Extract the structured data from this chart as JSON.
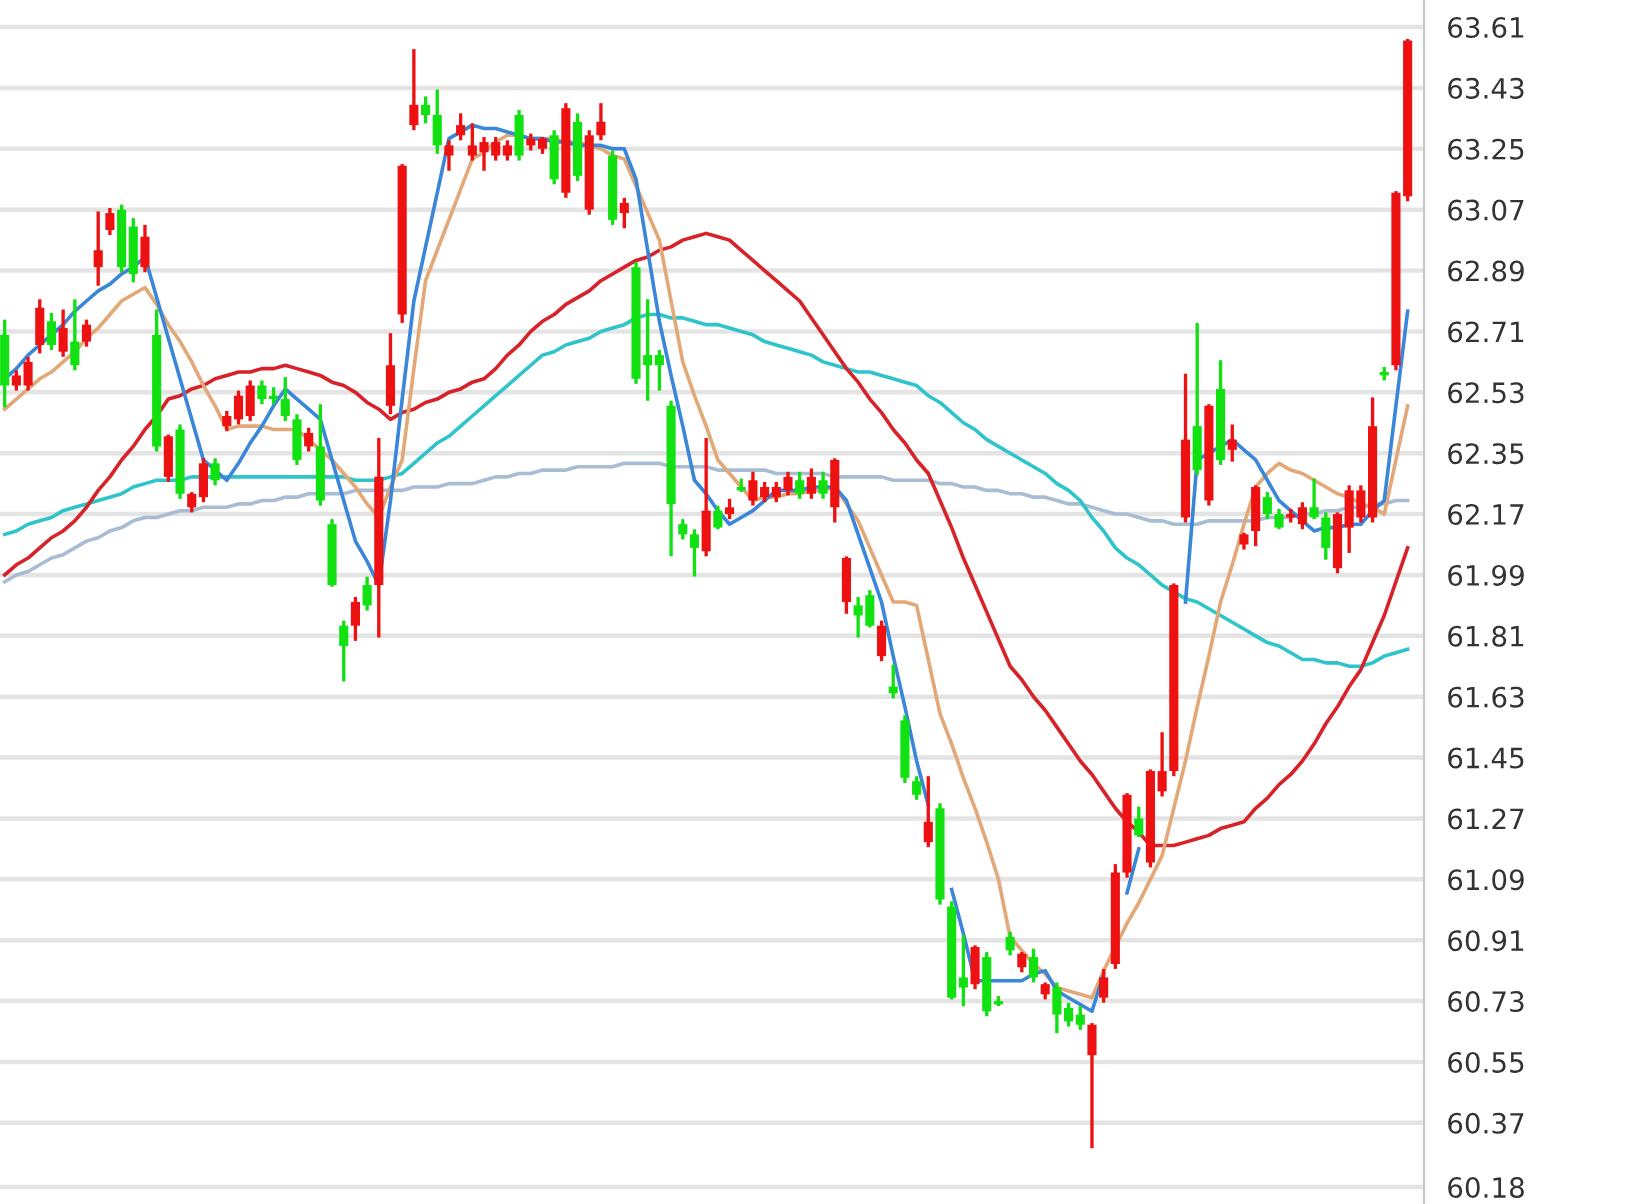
{
  "chart_data": {
    "type": "candlestick",
    "categories": [
      null,
      null,
      null,
      null,
      null,
      null,
      null,
      null,
      null,
      null,
      null,
      null,
      null,
      null,
      null,
      null,
      null,
      null,
      null,
      null,
      null,
      null,
      null,
      null,
      null,
      null,
      null,
      null,
      null,
      null,
      null,
      null,
      null,
      null,
      null,
      null,
      null,
      null,
      null,
      null,
      null,
      null,
      null,
      null,
      null,
      null,
      null,
      null,
      null,
      null,
      null,
      null,
      null,
      null,
      null,
      null,
      null,
      null,
      null,
      null,
      null,
      null,
      null,
      null,
      null,
      null,
      null,
      null,
      null,
      null,
      null,
      null,
      null,
      null,
      null,
      null,
      null,
      null,
      null,
      null,
      null,
      null,
      null,
      null,
      null,
      null,
      null,
      null,
      null,
      null,
      null,
      null,
      null,
      null,
      null,
      null,
      null,
      null,
      null,
      null,
      null,
      null,
      null,
      null,
      null,
      null,
      null,
      null,
      null,
      null,
      null,
      null,
      null,
      null,
      null,
      null,
      null,
      null,
      null,
      null,
      null
    ],
    "ohlc": [
      [
        62.7,
        62.74,
        62.49,
        62.55
      ],
      [
        62.55,
        62.59,
        62.54,
        62.58
      ],
      [
        62.55,
        62.63,
        62.54,
        62.62
      ],
      [
        62.67,
        62.8,
        62.65,
        62.78
      ],
      [
        62.74,
        62.76,
        62.66,
        62.67
      ],
      [
        62.65,
        62.77,
        62.64,
        62.72
      ],
      [
        62.68,
        62.8,
        62.6,
        62.61
      ],
      [
        62.68,
        62.74,
        62.67,
        62.73
      ],
      [
        62.9,
        63.06,
        62.85,
        62.95
      ],
      [
        63.01,
        63.07,
        63.0,
        63.06
      ],
      [
        63.07,
        63.08,
        62.89,
        62.9
      ],
      [
        63.02,
        63.04,
        62.86,
        62.88
      ],
      [
        62.9,
        63.02,
        62.89,
        62.99
      ],
      [
        62.7,
        62.77,
        62.36,
        62.37
      ],
      [
        62.28,
        62.4,
        62.27,
        62.4
      ],
      [
        62.42,
        62.43,
        62.22,
        62.23
      ],
      [
        62.19,
        62.23,
        62.18,
        62.23
      ],
      [
        62.22,
        62.33,
        62.21,
        62.32
      ],
      [
        62.32,
        62.33,
        62.26,
        62.27
      ],
      [
        62.43,
        62.47,
        62.42,
        62.46
      ],
      [
        62.45,
        62.53,
        62.44,
        62.52
      ],
      [
        62.46,
        62.56,
        62.45,
        62.55
      ],
      [
        62.55,
        62.56,
        62.5,
        62.51
      ],
      [
        62.52,
        62.54,
        62.5,
        62.51
      ],
      [
        62.51,
        62.57,
        62.45,
        62.46
      ],
      [
        62.45,
        62.46,
        62.32,
        62.33
      ],
      [
        62.37,
        62.42,
        62.36,
        62.41
      ],
      [
        62.37,
        62.49,
        62.2,
        62.21
      ],
      [
        62.14,
        62.15,
        61.96,
        61.96
      ],
      [
        61.84,
        61.85,
        61.68,
        61.78
      ],
      [
        61.84,
        61.92,
        61.8,
        61.91
      ],
      [
        61.96,
        61.98,
        61.89,
        61.9
      ],
      [
        61.96,
        62.39,
        61.81,
        62.28
      ],
      [
        62.49,
        62.7,
        62.47,
        62.61
      ],
      [
        62.76,
        63.2,
        62.74,
        63.2
      ],
      [
        63.32,
        63.54,
        63.31,
        63.38
      ],
      [
        63.38,
        63.4,
        63.33,
        63.35
      ],
      [
        63.35,
        63.42,
        63.24,
        63.26
      ],
      [
        63.23,
        63.27,
        63.19,
        63.26
      ],
      [
        63.29,
        63.35,
        63.28,
        63.32
      ],
      [
        63.23,
        63.32,
        63.22,
        63.26
      ],
      [
        63.24,
        63.28,
        63.19,
        63.27
      ],
      [
        63.23,
        63.28,
        63.22,
        63.27
      ],
      [
        63.23,
        63.27,
        63.22,
        63.26
      ],
      [
        63.35,
        63.36,
        63.22,
        63.23
      ],
      [
        63.26,
        63.29,
        63.25,
        63.28
      ],
      [
        63.25,
        63.28,
        63.24,
        63.28
      ],
      [
        63.29,
        63.3,
        63.15,
        63.16
      ],
      [
        63.12,
        63.38,
        63.11,
        63.37
      ],
      [
        63.33,
        63.35,
        63.16,
        63.17
      ],
      [
        63.07,
        63.3,
        63.06,
        63.29
      ],
      [
        63.29,
        63.38,
        63.28,
        63.33
      ],
      [
        63.23,
        63.24,
        63.03,
        63.04
      ],
      [
        63.06,
        63.1,
        63.02,
        63.09
      ],
      [
        62.9,
        62.91,
        62.56,
        62.57
      ],
      [
        62.64,
        62.8,
        62.51,
        62.61
      ],
      [
        62.64,
        62.65,
        62.54,
        62.61
      ],
      [
        62.49,
        62.5,
        62.05,
        62.2
      ],
      [
        62.14,
        62.15,
        62.1,
        62.11
      ],
      [
        62.11,
        62.12,
        61.99,
        62.07
      ],
      [
        62.06,
        62.39,
        62.05,
        62.18
      ],
      [
        62.18,
        62.19,
        62.13,
        62.13
      ],
      [
        62.17,
        62.21,
        62.16,
        62.19
      ],
      [
        62.25,
        62.27,
        62.24,
        62.24
      ],
      [
        62.21,
        62.29,
        62.2,
        62.27
      ],
      [
        62.22,
        62.26,
        62.21,
        62.25
      ],
      [
        62.22,
        62.26,
        62.21,
        62.25
      ],
      [
        62.24,
        62.29,
        62.23,
        62.28
      ],
      [
        62.27,
        62.29,
        62.22,
        62.23
      ],
      [
        62.23,
        62.3,
        62.22,
        62.28
      ],
      [
        62.27,
        62.29,
        62.22,
        62.23
      ],
      [
        62.19,
        62.33,
        62.15,
        62.33
      ],
      [
        61.91,
        62.04,
        61.88,
        62.04
      ],
      [
        61.9,
        61.92,
        61.81,
        61.87
      ],
      [
        61.93,
        61.94,
        61.84,
        61.84
      ],
      [
        61.75,
        61.85,
        61.74,
        61.84
      ],
      [
        61.66,
        61.72,
        61.63,
        61.64
      ],
      [
        61.56,
        61.57,
        61.38,
        61.39
      ],
      [
        61.38,
        61.39,
        61.33,
        61.34
      ],
      [
        61.2,
        61.39,
        61.19,
        61.26
      ],
      [
        61.3,
        61.31,
        61.02,
        61.03
      ],
      [
        61.01,
        61.02,
        60.74,
        60.74
      ],
      [
        60.8,
        60.92,
        60.72,
        60.77
      ],
      [
        60.78,
        60.89,
        60.77,
        60.89
      ],
      [
        60.86,
        60.87,
        60.69,
        60.7
      ],
      [
        60.73,
        60.74,
        60.72,
        60.72
      ],
      [
        60.92,
        60.93,
        60.87,
        60.88
      ],
      [
        60.83,
        60.87,
        60.82,
        60.87
      ],
      [
        60.86,
        60.88,
        60.79,
        60.8
      ],
      [
        60.75,
        60.78,
        60.74,
        60.78
      ],
      [
        60.77,
        60.78,
        60.64,
        60.69
      ],
      [
        60.71,
        60.72,
        60.66,
        60.67
      ],
      [
        60.69,
        60.71,
        60.65,
        60.66
      ],
      [
        60.57,
        60.66,
        60.3,
        60.66
      ],
      [
        60.74,
        60.82,
        60.73,
        60.8
      ],
      [
        60.84,
        61.13,
        60.83,
        61.11
      ],
      [
        61.11,
        61.34,
        61.1,
        61.34
      ],
      [
        61.27,
        61.3,
        61.22,
        61.22
      ],
      [
        61.14,
        61.41,
        61.13,
        61.41
      ],
      [
        61.35,
        61.52,
        61.34,
        61.41
      ],
      [
        61.41,
        61.96,
        61.4,
        61.96
      ],
      [
        62.16,
        62.58,
        62.15,
        62.39
      ],
      [
        62.43,
        62.73,
        62.29,
        62.3
      ],
      [
        62.21,
        62.49,
        62.2,
        62.49
      ],
      [
        62.54,
        62.62,
        62.32,
        62.33
      ],
      [
        62.36,
        62.43,
        62.33,
        62.39
      ],
      [
        62.08,
        62.11,
        62.07,
        62.11
      ],
      [
        62.12,
        62.25,
        62.08,
        62.25
      ],
      [
        62.22,
        62.23,
        62.16,
        62.17
      ],
      [
        62.17,
        62.18,
        62.13,
        62.13
      ],
      [
        62.16,
        62.18,
        62.15,
        62.17
      ],
      [
        62.14,
        62.2,
        62.13,
        62.19
      ],
      [
        62.19,
        62.27,
        62.16,
        62.16
      ],
      [
        62.16,
        62.17,
        62.04,
        62.07
      ],
      [
        62.01,
        62.17,
        62.0,
        62.17
      ],
      [
        62.13,
        62.25,
        62.06,
        62.24
      ],
      [
        62.16,
        62.25,
        62.15,
        62.24
      ],
      [
        62.16,
        62.51,
        62.15,
        62.43
      ],
      [
        62.59,
        62.6,
        62.57,
        62.58
      ],
      [
        62.61,
        63.12,
        62.6,
        63.12
      ],
      [
        63.11,
        63.57,
        63.1,
        63.57
      ]
    ],
    "colors": [
      "#11e011",
      "#ee1111",
      "#ee1111",
      "#ee1111",
      "#11e011",
      "#ee1111",
      "#11e011",
      "#ee1111",
      "#ee1111",
      "#ee1111",
      "#11e011",
      "#11e011",
      "#ee1111",
      "#11e011",
      "#ee1111",
      "#11e011",
      "#ee1111",
      "#ee1111",
      "#11e011",
      "#ee1111",
      "#ee1111",
      "#ee1111",
      "#11e011",
      "#11e011",
      "#11e011",
      "#11e011",
      "#ee1111",
      "#11e011",
      "#11e011",
      "#11e011",
      "#ee1111",
      "#11e011",
      "#ee1111",
      "#ee1111",
      "#ee1111",
      "#ee1111",
      "#11e011",
      "#11e011",
      "#ee1111",
      "#ee1111",
      "#ee1111",
      "#ee1111",
      "#ee1111",
      "#ee1111",
      "#11e011",
      "#ee1111",
      "#ee1111",
      "#11e011",
      "#ee1111",
      "#11e011",
      "#ee1111",
      "#ee1111",
      "#11e011",
      "#ee1111",
      "#11e011",
      "#11e011",
      "#11e011",
      "#11e011",
      "#11e011",
      "#11e011",
      "#ee1111",
      "#11e011",
      "#ee1111",
      "#11e011",
      "#ee1111",
      "#ee1111",
      "#ee1111",
      "#ee1111",
      "#11e011",
      "#ee1111",
      "#11e011",
      "#ee1111",
      "#ee1111",
      "#11e011",
      "#11e011",
      "#ee1111",
      "#11e011",
      "#11e011",
      "#11e011",
      "#ee1111",
      "#11e011",
      "#11e011",
      "#11e011",
      "#ee1111",
      "#11e011",
      "#11e011",
      "#11e011",
      "#ee1111",
      "#11e011",
      "#ee1111",
      "#11e011",
      "#11e011",
      "#11e011",
      "#ee1111",
      "#ee1111",
      "#ee1111",
      "#ee1111",
      "#11e011",
      "#ee1111",
      "#ee1111",
      "#ee1111",
      "#ee1111",
      "#11e011",
      "#ee1111",
      "#11e011",
      "#ee1111",
      "#ee1111",
      "#ee1111",
      "#11e011",
      "#11e011",
      "#ee1111",
      "#ee1111",
      "#11e011",
      "#11e011",
      "#ee1111",
      "#ee1111",
      "#ee1111",
      "#ee1111",
      "#11e011",
      "#ee1111",
      "#ee1111"
    ],
    "series": [
      {
        "type": "line",
        "color": "#a8bcd4",
        "values": [
          61.97,
          61.99,
          62.0,
          62.02,
          62.04,
          62.05,
          62.07,
          62.09,
          62.1,
          62.12,
          62.13,
          62.15,
          62.16,
          62.16,
          62.17,
          62.18,
          62.18,
          62.19,
          62.19,
          62.19,
          62.2,
          62.2,
          62.21,
          62.21,
          62.22,
          62.22,
          62.23,
          62.23,
          62.23,
          62.23,
          62.24,
          62.24,
          62.24,
          62.24,
          62.24,
          62.25,
          62.25,
          62.25,
          62.26,
          62.26,
          62.26,
          62.27,
          62.28,
          62.28,
          62.29,
          62.29,
          62.3,
          62.3,
          62.3,
          62.31,
          62.31,
          62.31,
          62.31,
          62.32,
          62.32,
          62.32,
          62.32,
          62.31,
          62.31,
          62.31,
          62.31,
          62.3,
          62.3,
          62.3,
          62.3,
          62.3,
          62.29,
          62.29,
          62.29,
          62.29,
          62.29,
          62.28,
          62.28,
          62.28,
          62.28,
          62.28,
          62.27,
          62.27,
          62.27,
          62.27,
          62.26,
          62.26,
          62.25,
          62.25,
          62.24,
          62.24,
          62.23,
          62.23,
          62.22,
          62.22,
          62.21,
          62.2,
          62.2,
          62.19,
          62.18,
          62.17,
          62.17,
          62.16,
          62.15,
          62.15,
          62.14,
          62.14,
          62.14,
          62.15,
          62.15,
          62.15,
          62.15,
          62.15,
          62.16,
          62.16,
          62.16,
          62.17,
          62.17,
          62.18,
          62.18,
          62.19,
          62.19,
          62.2,
          62.2,
          62.21,
          62.21
        ]
      },
      {
        "type": "line",
        "color": "#2fc4cc",
        "values": [
          62.11,
          62.12,
          62.14,
          62.15,
          62.16,
          62.18,
          62.19,
          62.2,
          62.21,
          62.22,
          62.23,
          62.25,
          62.26,
          62.27,
          62.27,
          62.27,
          62.28,
          62.28,
          62.28,
          62.28,
          62.28,
          62.28,
          62.28,
          62.28,
          62.28,
          62.28,
          62.28,
          62.28,
          62.28,
          62.28,
          62.27,
          62.27,
          62.27,
          62.28,
          62.29,
          62.32,
          62.35,
          62.38,
          62.4,
          62.43,
          62.46,
          62.49,
          62.52,
          62.55,
          62.58,
          62.61,
          62.64,
          62.65,
          62.67,
          62.68,
          62.69,
          62.71,
          62.72,
          62.73,
          62.75,
          62.76,
          62.76,
          62.75,
          62.75,
          62.74,
          62.73,
          62.73,
          62.72,
          62.71,
          62.7,
          62.68,
          62.67,
          62.66,
          62.65,
          62.64,
          62.62,
          62.61,
          62.6,
          62.59,
          62.59,
          62.58,
          62.57,
          62.56,
          62.55,
          62.52,
          62.5,
          62.47,
          62.44,
          62.42,
          62.39,
          62.37,
          62.35,
          62.33,
          62.31,
          62.29,
          62.26,
          62.24,
          62.21,
          62.16,
          62.12,
          62.07,
          62.04,
          62.02,
          61.99,
          61.96,
          61.94,
          61.92,
          61.91,
          61.89,
          61.87,
          61.85,
          61.83,
          61.81,
          61.79,
          61.78,
          61.76,
          61.74,
          61.74,
          61.73,
          61.73,
          61.72,
          61.72,
          61.73,
          61.75,
          61.76,
          61.77
        ]
      },
      {
        "type": "line",
        "color": "#d62228",
        "values": [
          61.99,
          62.02,
          62.04,
          62.07,
          62.1,
          62.12,
          62.15,
          62.19,
          62.24,
          62.28,
          62.33,
          62.37,
          62.42,
          62.46,
          62.51,
          62.52,
          62.54,
          62.55,
          62.57,
          62.58,
          62.59,
          62.59,
          62.6,
          62.6,
          62.61,
          62.6,
          62.59,
          62.58,
          62.56,
          62.55,
          62.53,
          62.5,
          62.48,
          62.45,
          62.47,
          62.48,
          62.5,
          62.51,
          62.53,
          62.54,
          62.56,
          62.57,
          62.6,
          62.64,
          62.67,
          62.71,
          62.74,
          62.76,
          62.79,
          62.81,
          62.83,
          62.86,
          62.88,
          62.9,
          62.92,
          62.93,
          62.95,
          62.96,
          62.98,
          62.99,
          63.0,
          62.99,
          62.98,
          62.95,
          62.92,
          62.89,
          62.86,
          62.83,
          62.8,
          62.75,
          62.7,
          62.65,
          62.6,
          62.56,
          62.51,
          62.47,
          62.42,
          62.38,
          62.33,
          62.29,
          62.21,
          62.13,
          62.04,
          61.96,
          61.88,
          61.8,
          61.72,
          61.68,
          61.63,
          61.59,
          61.54,
          61.49,
          61.44,
          61.4,
          61.35,
          61.3,
          61.26,
          61.23,
          61.19,
          61.19,
          61.19,
          61.2,
          61.21,
          61.22,
          61.24,
          61.25,
          61.26,
          61.3,
          61.33,
          61.37,
          61.4,
          61.44,
          61.49,
          61.55,
          61.6,
          61.66,
          61.71,
          61.79,
          61.87,
          61.97,
          62.07
        ]
      },
      {
        "type": "line",
        "color": "#e2a878",
        "values": [
          62.48,
          62.51,
          62.54,
          62.57,
          62.59,
          62.62,
          62.65,
          62.69,
          62.72,
          62.76,
          62.8,
          62.82,
          62.84,
          62.79,
          62.73,
          62.68,
          62.62,
          62.55,
          62.49,
          62.42,
          62.43,
          62.43,
          62.43,
          62.42,
          62.42,
          62.42,
          62.39,
          62.36,
          62.33,
          62.29,
          62.25,
          62.2,
          62.16,
          62.25,
          62.33,
          62.6,
          62.86,
          62.95,
          63.04,
          63.13,
          63.22,
          63.24,
          63.27,
          63.29,
          63.29,
          63.28,
          63.28,
          63.28,
          63.27,
          63.27,
          63.26,
          63.25,
          63.23,
          63.22,
          63.14,
          63.06,
          62.98,
          62.8,
          62.62,
          62.52,
          62.43,
          62.33,
          62.29,
          62.25,
          62.21,
          62.22,
          62.22,
          62.23,
          62.23,
          62.24,
          62.24,
          62.25,
          62.2,
          62.15,
          62.07,
          61.99,
          61.91,
          61.91,
          61.9,
          61.74,
          61.58,
          61.49,
          61.39,
          61.3,
          61.2,
          61.09,
          60.92,
          60.88,
          60.84,
          60.81,
          60.77,
          60.76,
          60.75,
          60.74,
          60.82,
          60.89,
          60.96,
          61.02,
          61.09,
          61.16,
          61.3,
          61.44,
          61.6,
          61.75,
          61.91,
          62.02,
          62.14,
          62.25,
          62.29,
          62.32,
          62.3,
          62.29,
          62.27,
          62.25,
          62.23,
          62.22,
          62.2,
          62.19,
          62.17,
          62.33,
          62.49
        ]
      },
      {
        "type": "line",
        "color": "#3a86d8",
        "values": [
          62.57,
          62.6,
          62.64,
          62.67,
          62.7,
          62.73,
          62.77,
          62.8,
          62.83,
          62.85,
          62.88,
          62.9,
          62.93,
          62.81,
          62.69,
          62.57,
          62.45,
          62.33,
          62.3,
          62.27,
          62.32,
          62.38,
          62.43,
          62.49,
          62.54,
          62.51,
          62.48,
          62.45,
          62.33,
          62.21,
          62.09,
          62.03,
          61.96,
          62.21,
          62.51,
          62.8,
          62.96,
          63.12,
          63.28,
          63.3,
          63.32,
          63.31,
          63.31,
          63.3,
          63.29,
          63.28,
          63.28,
          63.27,
          63.27,
          63.26,
          63.26,
          63.26,
          63.25,
          63.25,
          63.16,
          62.95,
          62.74,
          62.58,
          62.43,
          62.27,
          62.23,
          62.18,
          62.14,
          62.16,
          62.18,
          62.21,
          62.24,
          62.24,
          62.24,
          62.25,
          62.25,
          62.25,
          62.21,
          62.11,
          62.01,
          61.91,
          61.75,
          61.6,
          61.44,
          61.31,
          null,
          61.06,
          60.93,
          60.79,
          60.79,
          60.79,
          60.79,
          60.79,
          60.81,
          60.82,
          60.76,
          60.74,
          60.72,
          60.7,
          60.81,
          null,
          61.05,
          61.18,
          null,
          null,
          null,
          61.91,
          62.33,
          62.35,
          62.37,
          62.39,
          62.36,
          62.33,
          62.27,
          62.21,
          62.18,
          62.15,
          62.12,
          62.13,
          62.13,
          62.14,
          62.14,
          62.18,
          62.21,
          62.49,
          62.77
        ]
      }
    ],
    "ylim": [
      60.13,
      63.69
    ],
    "yticks": [
      60.18,
      60.37,
      60.55,
      60.73,
      60.91,
      61.09,
      61.27,
      61.45,
      61.63,
      61.81,
      61.99,
      62.17,
      62.35,
      62.53,
      62.71,
      62.89,
      63.07,
      63.25,
      63.43,
      63.61
    ],
    "grid": "y",
    "tick_labels": "y"
  }
}
